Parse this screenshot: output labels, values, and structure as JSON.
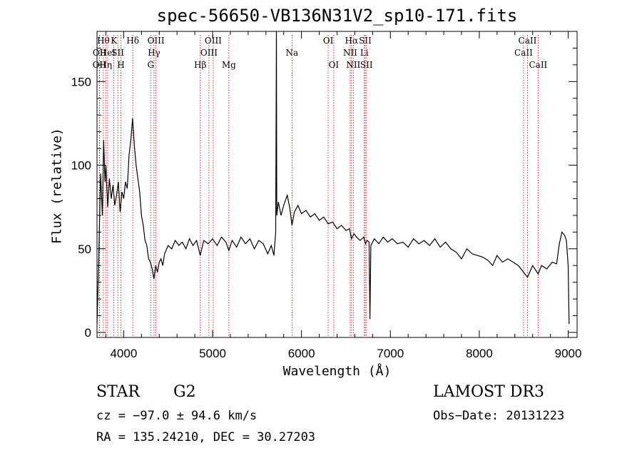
{
  "title": "spec-56650-VB136N31V2_sp10-171.fits",
  "info": {
    "object_type": "STAR",
    "subclass": "G2",
    "survey": "LAMOST DR3",
    "cz": "cz = −97.0 ± 94.6 km/s",
    "obs_date": "Obs−Date: 20131223",
    "radec": "RA = 135.24210, DEC =  30.27203"
  },
  "chart_data": {
    "type": "line",
    "title": "spec-56650-VB136N31V2_sp10-171.fits",
    "xlabel": "Wavelength (Å)",
    "ylabel": "Flux (relative)",
    "xlim": [
      3700,
      9100
    ],
    "ylim": [
      -3,
      180
    ],
    "xticks": [
      4000,
      5000,
      6000,
      7000,
      8000,
      9000
    ],
    "yticks": [
      0,
      50,
      100,
      150
    ],
    "grid": false,
    "colors": {
      "line": "#000000",
      "marker": "#cc0000"
    },
    "series": [
      {
        "values_xy": [
          [
            3700,
            5
          ],
          [
            3720,
            45
          ],
          [
            3740,
            95
          ],
          [
            3760,
            70
          ],
          [
            3775,
            115
          ],
          [
            3790,
            90
          ],
          [
            3800,
            100
          ],
          [
            3820,
            75
          ],
          [
            3840,
            92
          ],
          [
            3860,
            80
          ],
          [
            3880,
            88
          ],
          [
            3900,
            76
          ],
          [
            3920,
            82
          ],
          [
            3940,
            90
          ],
          [
            3960,
            72
          ],
          [
            3980,
            84
          ],
          [
            4000,
            80
          ],
          [
            4020,
            90
          ],
          [
            4040,
            86
          ],
          [
            4060,
            106
          ],
          [
            4080,
            115
          ],
          [
            4100,
            128
          ],
          [
            4120,
            112
          ],
          [
            4140,
            100
          ],
          [
            4160,
            92
          ],
          [
            4180,
            84
          ],
          [
            4200,
            70
          ],
          [
            4220,
            64
          ],
          [
            4240,
            55
          ],
          [
            4260,
            52
          ],
          [
            4280,
            44
          ],
          [
            4300,
            42
          ],
          [
            4320,
            38
          ],
          [
            4340,
            32
          ],
          [
            4360,
            40
          ],
          [
            4380,
            36
          ],
          [
            4400,
            42
          ],
          [
            4420,
            44
          ],
          [
            4440,
            40
          ],
          [
            4460,
            47
          ],
          [
            4500,
            52
          ],
          [
            4540,
            50
          ],
          [
            4580,
            55
          ],
          [
            4620,
            52
          ],
          [
            4660,
            54
          ],
          [
            4700,
            50
          ],
          [
            4740,
            56
          ],
          [
            4780,
            52
          ],
          [
            4820,
            55
          ],
          [
            4861,
            46
          ],
          [
            4900,
            55
          ],
          [
            4950,
            53
          ],
          [
            5000,
            56
          ],
          [
            5050,
            52
          ],
          [
            5100,
            57
          ],
          [
            5150,
            54
          ],
          [
            5183,
            49
          ],
          [
            5220,
            55
          ],
          [
            5270,
            51
          ],
          [
            5320,
            57
          ],
          [
            5370,
            53
          ],
          [
            5420,
            56
          ],
          [
            5470,
            50
          ],
          [
            5520,
            55
          ],
          [
            5570,
            53
          ],
          [
            5620,
            47
          ],
          [
            5660,
            52
          ],
          [
            5690,
            46
          ],
          [
            5710,
            60
          ],
          [
            5718,
            180
          ],
          [
            5722,
            70
          ],
          [
            5740,
            78
          ],
          [
            5770,
            70
          ],
          [
            5800,
            76
          ],
          [
            5840,
            82
          ],
          [
            5870,
            74
          ],
          [
            5893,
            64
          ],
          [
            5920,
            72
          ],
          [
            5960,
            76
          ],
          [
            6000,
            71
          ],
          [
            6050,
            73
          ],
          [
            6100,
            69
          ],
          [
            6150,
            71
          ],
          [
            6200,
            67
          ],
          [
            6250,
            69
          ],
          [
            6300,
            65
          ],
          [
            6350,
            66
          ],
          [
            6400,
            62
          ],
          [
            6450,
            64
          ],
          [
            6500,
            61
          ],
          [
            6540,
            62
          ],
          [
            6563,
            56
          ],
          [
            6590,
            59
          ],
          [
            6620,
            57
          ],
          [
            6660,
            55
          ],
          [
            6700,
            57
          ],
          [
            6720,
            53
          ],
          [
            6740,
            55
          ],
          [
            6760,
            54
          ],
          [
            6770,
            8
          ],
          [
            6780,
            52
          ],
          [
            6820,
            56
          ],
          [
            6870,
            53
          ],
          [
            6920,
            57
          ],
          [
            6970,
            54
          ],
          [
            7020,
            56
          ],
          [
            7080,
            53
          ],
          [
            7140,
            54
          ],
          [
            7200,
            51
          ],
          [
            7260,
            56
          ],
          [
            7320,
            53
          ],
          [
            7380,
            55
          ],
          [
            7440,
            52
          ],
          [
            7500,
            56
          ],
          [
            7560,
            51
          ],
          [
            7620,
            54
          ],
          [
            7680,
            50
          ],
          [
            7740,
            48
          ],
          [
            7800,
            44
          ],
          [
            7860,
            50
          ],
          [
            7920,
            47
          ],
          [
            7980,
            46
          ],
          [
            8040,
            45
          ],
          [
            8100,
            43
          ],
          [
            8150,
            40
          ],
          [
            8200,
            46
          ],
          [
            8260,
            42
          ],
          [
            8320,
            44
          ],
          [
            8380,
            42
          ],
          [
            8440,
            40
          ],
          [
            8498,
            36
          ],
          [
            8542,
            33
          ],
          [
            8600,
            40
          ],
          [
            8662,
            35
          ],
          [
            8700,
            40
          ],
          [
            8760,
            38
          ],
          [
            8820,
            42
          ],
          [
            8870,
            41
          ],
          [
            8900,
            53
          ],
          [
            8930,
            60
          ],
          [
            8960,
            58
          ],
          [
            8980,
            55
          ],
          [
            9000,
            40
          ],
          [
            9010,
            5
          ]
        ]
      }
    ],
    "lines": [
      {
        "wave": 3727,
        "label": "OII",
        "row": 3
      },
      {
        "wave": 3728,
        "label": "OII",
        "row": 2
      },
      {
        "wave": 3771,
        "label": "Hθ",
        "row": 1
      },
      {
        "wave": 3798,
        "label": "Hη",
        "row": 3
      },
      {
        "wave": 3820,
        "label": "HeI",
        "row": 2
      },
      {
        "wave": 3889,
        "label": "K",
        "row": 1
      },
      {
        "wave": 3934,
        "label": "SII",
        "row": 2
      },
      {
        "wave": 3969,
        "label": "H",
        "row": 3
      },
      {
        "wave": 4102,
        "label": "Hδ",
        "row": 1
      },
      {
        "wave": 4304,
        "label": "G",
        "row": 3
      },
      {
        "wave": 4341,
        "label": "Hγ",
        "row": 2
      },
      {
        "wave": 4363,
        "label": "OIII",
        "row": 1
      },
      {
        "wave": 4861,
        "label": "Hβ",
        "row": 3
      },
      {
        "wave": 4959,
        "label": "OIII",
        "row": 2
      },
      {
        "wave": 5007,
        "label": "OIII",
        "row": 1
      },
      {
        "wave": 5183,
        "label": "Mg",
        "row": 3
      },
      {
        "wave": 5893,
        "label": "Na",
        "row": 2
      },
      {
        "wave": 6300,
        "label": "OI",
        "row": 1
      },
      {
        "wave": 6363,
        "label": "OI",
        "row": 3
      },
      {
        "wave": 6548,
        "label": "NII",
        "row": 2
      },
      {
        "wave": 6563,
        "label": "Hα",
        "row": 1
      },
      {
        "wave": 6583,
        "label": "NII",
        "row": 3
      },
      {
        "wave": 6707,
        "label": "Li",
        "row": 2
      },
      {
        "wave": 6717,
        "label": "SII",
        "row": 1
      },
      {
        "wave": 6731,
        "label": "SII",
        "row": 3
      },
      {
        "wave": 8498,
        "label": "CaII",
        "row": 2
      },
      {
        "wave": 8542,
        "label": "CaII",
        "row": 1
      },
      {
        "wave": 8662,
        "label": "CaII",
        "row": 3
      }
    ]
  }
}
